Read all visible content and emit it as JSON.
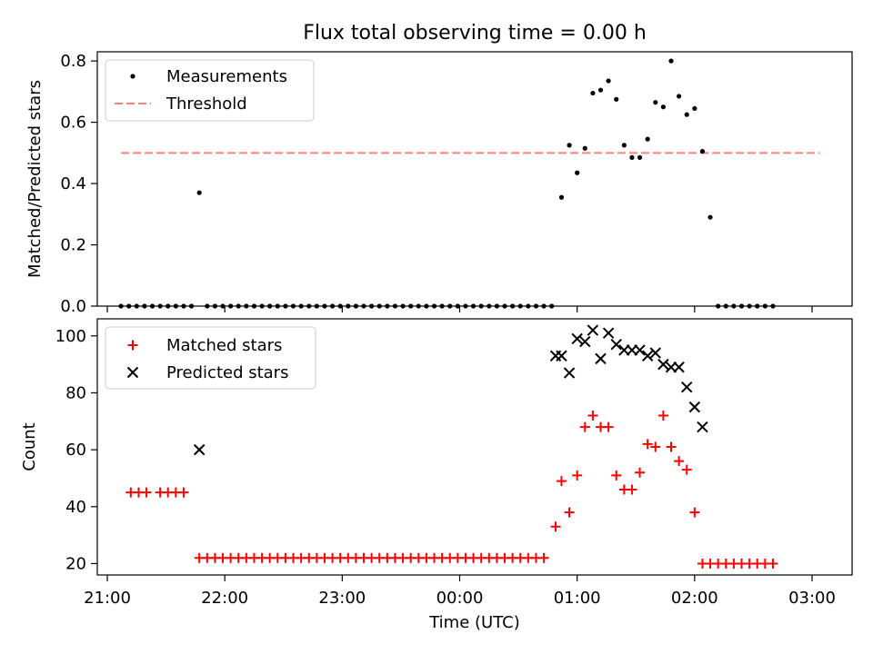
{
  "title": "Flux total observing time = 0.00 h",
  "colors": {
    "threshold": "#ff7f7f",
    "matched": "#ff0000",
    "predicted": "#000000",
    "measurements": "#000000"
  },
  "chart_data": [
    {
      "type": "scatter",
      "panel": "top",
      "ylabel": "Matched/Predicted stars",
      "xlabel": "",
      "ylim": [
        0,
        0.83
      ],
      "yticks": [
        0.0,
        0.2,
        0.4,
        0.6,
        0.8
      ],
      "ytick_labels": [
        "0.0",
        "0.2",
        "0.4",
        "0.6",
        "0.8"
      ],
      "legend": {
        "placement": "upper-left",
        "entries": [
          {
            "label": "Measurements",
            "marker": "dot"
          },
          {
            "label": "Threshold",
            "marker": "dashed-line"
          }
        ]
      },
      "threshold": {
        "value": 0.5,
        "x_range": [
          "21:07",
          "03:04"
        ]
      },
      "series": [
        {
          "name": "Measurements",
          "points": [
            [
              "21:07",
              0
            ],
            [
              "21:11",
              0
            ],
            [
              "21:15",
              0
            ],
            [
              "21:19",
              0
            ],
            [
              "21:23",
              0
            ],
            [
              "21:27",
              0
            ],
            [
              "21:31",
              0
            ],
            [
              "21:35",
              0
            ],
            [
              "21:39",
              0
            ],
            [
              "21:43",
              0
            ],
            [
              "21:47",
              0.37
            ],
            [
              "21:51",
              0
            ],
            [
              "21:55",
              0
            ],
            [
              "21:59",
              0
            ],
            [
              "22:03",
              0
            ],
            [
              "22:07",
              0
            ],
            [
              "22:11",
              0
            ],
            [
              "22:15",
              0
            ],
            [
              "22:19",
              0
            ],
            [
              "22:23",
              0
            ],
            [
              "22:27",
              0
            ],
            [
              "22:31",
              0
            ],
            [
              "22:35",
              0
            ],
            [
              "22:39",
              0
            ],
            [
              "22:43",
              0
            ],
            [
              "22:47",
              0
            ],
            [
              "22:51",
              0
            ],
            [
              "22:55",
              0
            ],
            [
              "22:59",
              0
            ],
            [
              "23:03",
              0
            ],
            [
              "23:07",
              0
            ],
            [
              "23:11",
              0
            ],
            [
              "23:15",
              0
            ],
            [
              "23:19",
              0
            ],
            [
              "23:23",
              0
            ],
            [
              "23:27",
              0
            ],
            [
              "23:31",
              0
            ],
            [
              "23:35",
              0
            ],
            [
              "23:39",
              0
            ],
            [
              "23:43",
              0
            ],
            [
              "23:47",
              0
            ],
            [
              "23:51",
              0
            ],
            [
              "23:55",
              0
            ],
            [
              "23:59",
              0
            ],
            [
              "00:03",
              0
            ],
            [
              "00:07",
              0
            ],
            [
              "00:11",
              0
            ],
            [
              "00:15",
              0
            ],
            [
              "00:19",
              0
            ],
            [
              "00:23",
              0
            ],
            [
              "00:27",
              0
            ],
            [
              "00:31",
              0
            ],
            [
              "00:35",
              0
            ],
            [
              "00:39",
              0
            ],
            [
              "00:43",
              0
            ],
            [
              "00:47",
              0
            ],
            [
              "00:52",
              0.355
            ],
            [
              "00:56",
              0.525
            ],
            [
              "01:00",
              0.435
            ],
            [
              "01:04",
              0.515
            ],
            [
              "01:08",
              0.695
            ],
            [
              "01:12",
              0.705
            ],
            [
              "01:16",
              0.735
            ],
            [
              "01:20",
              0.675
            ],
            [
              "01:24",
              0.525
            ],
            [
              "01:28",
              0.485
            ],
            [
              "01:32",
              0.485
            ],
            [
              "01:36",
              0.545
            ],
            [
              "01:40",
              0.665
            ],
            [
              "01:44",
              0.65
            ],
            [
              "01:48",
              0.8
            ],
            [
              "01:52",
              0.685
            ],
            [
              "01:56",
              0.625
            ],
            [
              "02:00",
              0.645
            ],
            [
              "02:04",
              0.505
            ],
            [
              "02:08",
              0.29
            ],
            [
              "02:12",
              0
            ],
            [
              "02:16",
              0
            ],
            [
              "02:20",
              0
            ],
            [
              "02:24",
              0
            ],
            [
              "02:28",
              0
            ],
            [
              "02:32",
              0
            ],
            [
              "02:36",
              0
            ],
            [
              "02:40",
              0
            ]
          ]
        }
      ]
    },
    {
      "type": "scatter",
      "panel": "bottom",
      "ylabel": "Count",
      "xlabel": "Time (UTC)",
      "ylim": [
        16,
        106
      ],
      "yticks": [
        20,
        40,
        60,
        80,
        100
      ],
      "ytick_labels": [
        "20",
        "40",
        "60",
        "80",
        "100"
      ],
      "xticks": [
        "21:00",
        "22:00",
        "23:00",
        "00:00",
        "01:00",
        "02:00",
        "03:00"
      ],
      "legend": {
        "placement": "upper-left",
        "entries": [
          {
            "label": "Matched stars",
            "marker": "plus"
          },
          {
            "label": "Predicted stars",
            "marker": "x"
          }
        ]
      },
      "series": [
        {
          "name": "Matched stars",
          "points": [
            [
              "21:12",
              45
            ],
            [
              "21:16",
              45
            ],
            [
              "21:20",
              45
            ],
            [
              "21:27",
              45
            ],
            [
              "21:31",
              45
            ],
            [
              "21:35",
              45
            ],
            [
              "21:39",
              45
            ],
            [
              "21:47",
              22
            ],
            [
              "21:51",
              22
            ],
            [
              "21:55",
              22
            ],
            [
              "21:59",
              22
            ],
            [
              "22:03",
              22
            ],
            [
              "22:07",
              22
            ],
            [
              "22:11",
              22
            ],
            [
              "22:15",
              22
            ],
            [
              "22:19",
              22
            ],
            [
              "22:23",
              22
            ],
            [
              "22:27",
              22
            ],
            [
              "22:31",
              22
            ],
            [
              "22:35",
              22
            ],
            [
              "22:39",
              22
            ],
            [
              "22:43",
              22
            ],
            [
              "22:47",
              22
            ],
            [
              "22:51",
              22
            ],
            [
              "22:55",
              22
            ],
            [
              "22:59",
              22
            ],
            [
              "23:03",
              22
            ],
            [
              "23:07",
              22
            ],
            [
              "23:11",
              22
            ],
            [
              "23:15",
              22
            ],
            [
              "23:19",
              22
            ],
            [
              "23:23",
              22
            ],
            [
              "23:27",
              22
            ],
            [
              "23:31",
              22
            ],
            [
              "23:35",
              22
            ],
            [
              "23:39",
              22
            ],
            [
              "23:43",
              22
            ],
            [
              "23:47",
              22
            ],
            [
              "23:51",
              22
            ],
            [
              "23:55",
              22
            ],
            [
              "23:59",
              22
            ],
            [
              "00:03",
              22
            ],
            [
              "00:07",
              22
            ],
            [
              "00:11",
              22
            ],
            [
              "00:15",
              22
            ],
            [
              "00:19",
              22
            ],
            [
              "00:23",
              22
            ],
            [
              "00:27",
              22
            ],
            [
              "00:31",
              22
            ],
            [
              "00:35",
              22
            ],
            [
              "00:39",
              22
            ],
            [
              "00:43",
              22
            ],
            [
              "00:49",
              33
            ],
            [
              "00:52",
              49
            ],
            [
              "00:56",
              38
            ],
            [
              "01:00",
              51
            ],
            [
              "01:04",
              68
            ],
            [
              "01:08",
              72
            ],
            [
              "01:12",
              68
            ],
            [
              "01:16",
              68
            ],
            [
              "01:20",
              51
            ],
            [
              "01:24",
              46
            ],
            [
              "01:28",
              46
            ],
            [
              "01:32",
              52
            ],
            [
              "01:36",
              62
            ],
            [
              "01:40",
              61
            ],
            [
              "01:44",
              72
            ],
            [
              "01:48",
              61
            ],
            [
              "01:52",
              56
            ],
            [
              "01:56",
              53
            ],
            [
              "02:00",
              38
            ],
            [
              "02:04",
              20
            ],
            [
              "02:08",
              20
            ],
            [
              "02:12",
              20
            ],
            [
              "02:16",
              20
            ],
            [
              "02:20",
              20
            ],
            [
              "02:24",
              20
            ],
            [
              "02:28",
              20
            ],
            [
              "02:32",
              20
            ],
            [
              "02:36",
              20
            ],
            [
              "02:40",
              20
            ]
          ]
        },
        {
          "name": "Predicted stars",
          "points": [
            [
              "21:47",
              60
            ],
            [
              "00:49",
              93
            ],
            [
              "00:52",
              93
            ],
            [
              "00:56",
              87
            ],
            [
              "01:00",
              99
            ],
            [
              "01:04",
              98
            ],
            [
              "01:08",
              102
            ],
            [
              "01:12",
              92
            ],
            [
              "01:16",
              101
            ],
            [
              "01:20",
              97
            ],
            [
              "01:24",
              95
            ],
            [
              "01:28",
              95
            ],
            [
              "01:32",
              95
            ],
            [
              "01:36",
              93
            ],
            [
              "01:40",
              94
            ],
            [
              "01:44",
              90
            ],
            [
              "01:48",
              89
            ],
            [
              "01:52",
              89
            ],
            [
              "01:56",
              82
            ],
            [
              "02:00",
              75
            ],
            [
              "02:04",
              68
            ]
          ]
        }
      ]
    }
  ]
}
